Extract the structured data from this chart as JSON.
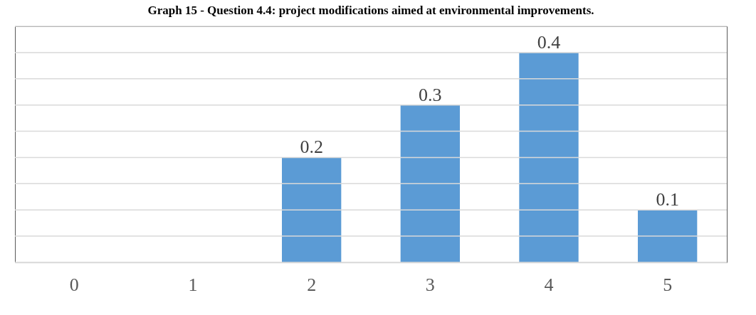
{
  "chart_data": {
    "type": "bar",
    "title": "Graph 15 - Question 4.4: project modifications aimed at environmental improvements.",
    "categories": [
      "0",
      "1",
      "2",
      "3",
      "4",
      "5"
    ],
    "values": [
      0,
      0,
      0.2,
      0.3,
      0.4,
      0.1
    ],
    "value_labels": [
      null,
      null,
      "0.2",
      "0.3",
      "0.4",
      "0.1"
    ],
    "color": "#5b9bd5",
    "ylim": [
      0,
      0.45
    ],
    "yticks": [
      {
        "value": 0,
        "label": null
      },
      {
        "value": 0.05,
        "label": null
      },
      {
        "value": 0.1,
        "label": null
      },
      {
        "value": 0.15,
        "label": null
      },
      {
        "value": 0.2,
        "label": null
      },
      {
        "value": 0.25,
        "label": null
      },
      {
        "value": 0.3,
        "label": null
      },
      {
        "value": 0.35,
        "label": null
      },
      {
        "value": 0.4,
        "label": null
      },
      {
        "value": 0.45,
        "label": null
      }
    ],
    "grid": "y",
    "tick_labels": "x"
  }
}
